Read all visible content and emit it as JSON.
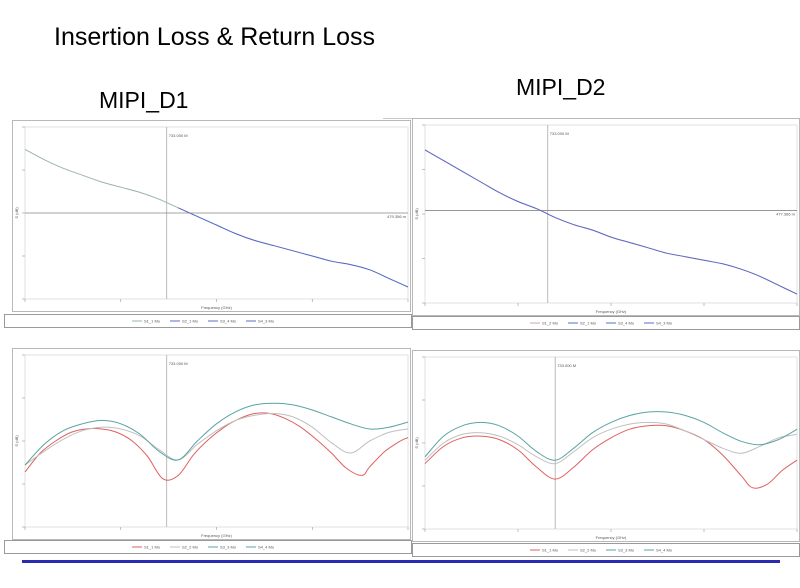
{
  "slide": {
    "title": "Insertion Loss & Return Loss",
    "left_heading": "MIPI_D1",
    "right_heading": "MIPI_D2",
    "accent_rule_color": "#2b2bb0"
  },
  "chart_data": [
    {
      "id": "d1-il",
      "type": "line",
      "ylim": [
        0,
        1
      ],
      "xlim": [
        0,
        1
      ],
      "marker": {
        "x_label": "733.000 M",
        "y_label": "479.356 m",
        "x": 0.37,
        "y": 0.5
      },
      "xlabel": "Frequency (GHz)",
      "ylabel": "S (dB)",
      "legend": [
        "S1_1 Mo",
        "S2_1 Mo",
        "S3_4 Mo",
        "S4_3 Mo"
      ],
      "series": [
        {
          "color": "#9bb3b3",
          "x": [
            0,
            0.05,
            0.1,
            0.15,
            0.2,
            0.25,
            0.3,
            0.35,
            0.4,
            0.45,
            0.5,
            0.55,
            0.6,
            0.65,
            0.7,
            0.75,
            0.8,
            0.85,
            0.9,
            0.95,
            1
          ],
          "y": [
            0.87,
            0.81,
            0.76,
            0.72,
            0.68,
            0.65,
            0.62,
            0.58,
            0.53,
            0.48,
            0.43,
            0.38,
            0.34,
            0.31,
            0.28,
            0.25,
            0.22,
            0.2,
            0.17,
            0.12,
            0.07
          ]
        },
        {
          "color": "#5b6bc8",
          "x": [
            0.4,
            0.45,
            0.5,
            0.55,
            0.6,
            0.65,
            0.7,
            0.75,
            0.8,
            0.85,
            0.9,
            0.95,
            1
          ],
          "y": [
            0.53,
            0.48,
            0.43,
            0.38,
            0.34,
            0.31,
            0.28,
            0.25,
            0.22,
            0.2,
            0.17,
            0.12,
            0.07
          ]
        }
      ]
    },
    {
      "id": "d2-il",
      "type": "line",
      "ylim": [
        0,
        1
      ],
      "xlim": [
        0,
        1
      ],
      "marker": {
        "x_label": "733.000 M",
        "y_label": "477.366 m",
        "x": 0.33,
        "y": 0.52
      },
      "xlabel": "Frequency (GHz)",
      "ylabel": "S (dB)",
      "legend": [
        "S1_2 Mo",
        "S2_1 Mo",
        "S3_4 Mo",
        "S4_3 Mo"
      ],
      "series": [
        {
          "color": "#c9a8a8",
          "x": [
            0,
            0.05,
            0.1,
            0.15,
            0.2,
            0.25,
            0.3,
            0.35,
            0.4,
            0.45,
            0.5,
            0.55,
            0.6,
            0.65,
            0.7,
            0.75,
            0.8,
            0.85,
            0.9,
            0.95,
            1
          ],
          "y": [
            0.86,
            0.8,
            0.74,
            0.68,
            0.62,
            0.57,
            0.53,
            0.48,
            0.44,
            0.41,
            0.37,
            0.34,
            0.31,
            0.28,
            0.26,
            0.24,
            0.22,
            0.19,
            0.15,
            0.1,
            0.05
          ]
        },
        {
          "color": "#5b6bc8",
          "x": [
            0,
            0.05,
            0.1,
            0.15,
            0.2,
            0.25,
            0.3,
            0.35,
            0.4,
            0.45,
            0.5,
            0.55,
            0.6,
            0.65,
            0.7,
            0.75,
            0.8,
            0.85,
            0.9,
            0.95,
            1
          ],
          "y": [
            0.86,
            0.8,
            0.74,
            0.68,
            0.62,
            0.57,
            0.53,
            0.48,
            0.44,
            0.41,
            0.37,
            0.34,
            0.31,
            0.28,
            0.26,
            0.24,
            0.22,
            0.19,
            0.15,
            0.1,
            0.05
          ]
        }
      ]
    },
    {
      "id": "d1-rl",
      "type": "line",
      "ylim": [
        0,
        1
      ],
      "xlim": [
        0,
        1
      ],
      "marker": {
        "x_label": "733.000 M",
        "x": 0.37
      },
      "xlabel": "Frequency (GHz)",
      "ylabel": "S (dB)",
      "legend": [
        "S1_1 Mo",
        "S2_2 Mo",
        "S3_3 Mo",
        "S4_4 Mo"
      ],
      "series": [
        {
          "color": "#e06060",
          "x": [
            0,
            0.04,
            0.08,
            0.12,
            0.16,
            0.2,
            0.24,
            0.28,
            0.32,
            0.36,
            0.4,
            0.44,
            0.48,
            0.52,
            0.56,
            0.6,
            0.64,
            0.68,
            0.72,
            0.76,
            0.8,
            0.84,
            0.88,
            0.9,
            0.94,
            0.98,
            1
          ],
          "y": [
            0.32,
            0.43,
            0.5,
            0.55,
            0.57,
            0.57,
            0.55,
            0.5,
            0.41,
            0.28,
            0.3,
            0.42,
            0.51,
            0.58,
            0.63,
            0.66,
            0.66,
            0.63,
            0.58,
            0.51,
            0.43,
            0.34,
            0.3,
            0.35,
            0.44,
            0.5,
            0.52
          ]
        },
        {
          "color": "#c0c0c0",
          "x": [
            0,
            0.05,
            0.1,
            0.15,
            0.2,
            0.25,
            0.3,
            0.35,
            0.4,
            0.45,
            0.5,
            0.55,
            0.6,
            0.65,
            0.7,
            0.75,
            0.8,
            0.85,
            0.9,
            0.95,
            1
          ],
          "y": [
            0.36,
            0.44,
            0.51,
            0.56,
            0.58,
            0.57,
            0.53,
            0.45,
            0.39,
            0.48,
            0.56,
            0.62,
            0.65,
            0.66,
            0.64,
            0.58,
            0.49,
            0.43,
            0.5,
            0.55,
            0.57
          ]
        },
        {
          "color": "#5aa3a3",
          "x": [
            0,
            0.05,
            0.1,
            0.15,
            0.2,
            0.25,
            0.3,
            0.35,
            0.4,
            0.45,
            0.5,
            0.55,
            0.6,
            0.65,
            0.7,
            0.75,
            0.8,
            0.85,
            0.9,
            0.95,
            1
          ],
          "y": [
            0.36,
            0.48,
            0.56,
            0.6,
            0.62,
            0.6,
            0.54,
            0.44,
            0.39,
            0.5,
            0.6,
            0.67,
            0.71,
            0.72,
            0.71,
            0.68,
            0.64,
            0.6,
            0.57,
            0.58,
            0.61
          ]
        }
      ]
    },
    {
      "id": "d2-rl",
      "type": "line",
      "ylim": [
        0,
        1
      ],
      "xlim": [
        0,
        1
      ],
      "marker": {
        "x_label": "733.000 M",
        "x": 0.35
      },
      "xlabel": "Frequency (GHz)",
      "ylabel": "S (dB)",
      "legend": [
        "S1_1 Mo",
        "S2_2 Mo",
        "S3_3 Mo",
        "S4_4 Mo"
      ],
      "series": [
        {
          "color": "#e06060",
          "x": [
            0,
            0.05,
            0.1,
            0.15,
            0.2,
            0.25,
            0.3,
            0.35,
            0.4,
            0.45,
            0.5,
            0.55,
            0.6,
            0.65,
            0.7,
            0.75,
            0.8,
            0.85,
            0.88,
            0.92,
            0.96,
            1
          ],
          "y": [
            0.38,
            0.48,
            0.53,
            0.54,
            0.52,
            0.46,
            0.36,
            0.29,
            0.36,
            0.46,
            0.53,
            0.58,
            0.6,
            0.6,
            0.57,
            0.52,
            0.43,
            0.31,
            0.24,
            0.26,
            0.34,
            0.4
          ]
        },
        {
          "color": "#c0c0c0",
          "x": [
            0,
            0.05,
            0.1,
            0.15,
            0.2,
            0.25,
            0.3,
            0.35,
            0.4,
            0.45,
            0.5,
            0.55,
            0.6,
            0.65,
            0.7,
            0.75,
            0.8,
            0.85,
            0.9,
            0.95,
            1
          ],
          "y": [
            0.4,
            0.5,
            0.55,
            0.56,
            0.54,
            0.49,
            0.42,
            0.38,
            0.45,
            0.53,
            0.58,
            0.61,
            0.62,
            0.61,
            0.57,
            0.52,
            0.47,
            0.44,
            0.48,
            0.53,
            0.55
          ]
        },
        {
          "color": "#5aa3a3",
          "x": [
            0,
            0.05,
            0.1,
            0.15,
            0.2,
            0.25,
            0.3,
            0.35,
            0.4,
            0.45,
            0.5,
            0.55,
            0.6,
            0.65,
            0.7,
            0.75,
            0.8,
            0.85,
            0.9,
            0.95,
            1
          ],
          "y": [
            0.42,
            0.54,
            0.6,
            0.62,
            0.6,
            0.54,
            0.45,
            0.4,
            0.47,
            0.56,
            0.62,
            0.66,
            0.68,
            0.68,
            0.66,
            0.62,
            0.56,
            0.51,
            0.49,
            0.52,
            0.58
          ]
        }
      ]
    }
  ]
}
